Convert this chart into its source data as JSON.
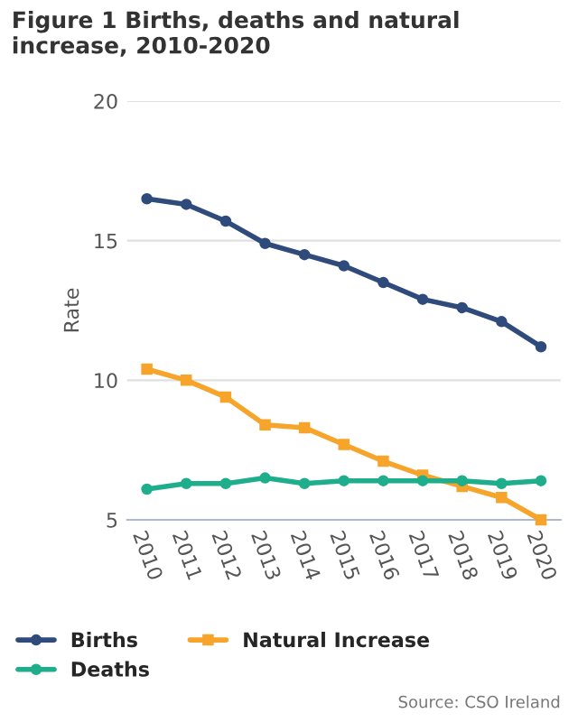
{
  "chart_data": {
    "type": "line",
    "title": "Figure 1 Births, deaths and natural increase, 2010-2020",
    "ylabel": "Rate",
    "categories": [
      "2010",
      "2011",
      "2012",
      "2013",
      "2014",
      "2015",
      "2016",
      "2017",
      "2018",
      "2019",
      "2020"
    ],
    "series": [
      {
        "name": "Births",
        "color": "#2f4b7c",
        "marker": "circle",
        "values": [
          16.5,
          16.3,
          15.7,
          14.9,
          14.5,
          14.1,
          13.5,
          12.9,
          12.6,
          12.1,
          11.2
        ]
      },
      {
        "name": "Deaths",
        "color": "#1fae8c",
        "marker": "circle",
        "values": [
          6.1,
          6.3,
          6.3,
          6.5,
          6.3,
          6.4,
          6.4,
          6.4,
          6.4,
          6.3,
          6.4
        ]
      },
      {
        "name": "Natural Increase",
        "color": "#f7a42b",
        "marker": "square",
        "values": [
          10.4,
          10.0,
          9.4,
          8.4,
          8.3,
          7.7,
          7.1,
          6.6,
          6.2,
          5.8,
          5.0
        ]
      }
    ],
    "ylim": [
      5,
      20
    ],
    "yticks": [
      5,
      10,
      15,
      20
    ],
    "grid": "y",
    "legend": "bottom",
    "line_style": "solid",
    "annotations": [
      "Source: CSO Ireland"
    ]
  }
}
